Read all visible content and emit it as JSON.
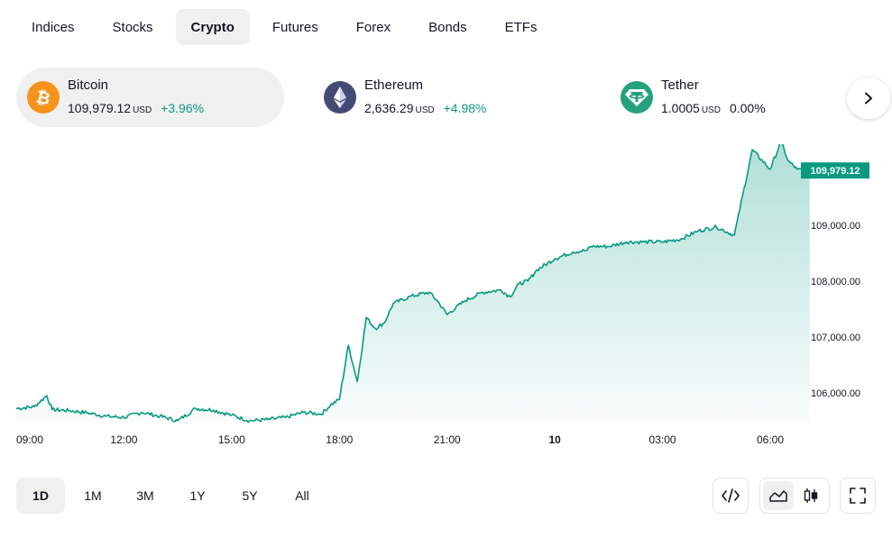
{
  "tabs": [
    {
      "label": "Indices"
    },
    {
      "label": "Stocks"
    },
    {
      "label": "Crypto",
      "active": true
    },
    {
      "label": "Futures"
    },
    {
      "label": "Forex"
    },
    {
      "label": "Bonds"
    },
    {
      "label": "ETFs"
    }
  ],
  "cards": [
    {
      "name": "Bitcoin",
      "price": "109,979.12",
      "unit": "USD",
      "change": "+3.96%",
      "icon": "bitcoin-icon",
      "color": "#f7931a"
    },
    {
      "name": "Ethereum",
      "price": "2,636.29",
      "unit": "USD",
      "change": "+4.98%",
      "icon": "ethereum-icon",
      "color": "#454a75"
    },
    {
      "name": "Tether",
      "price": "1.0005",
      "unit": "USD",
      "change": "0.00%",
      "icon": "tether-icon",
      "color": "#26a17b"
    }
  ],
  "colors": {
    "line": "#089981",
    "positive": "#089981",
    "active_bg": "#f0f0f0"
  },
  "chart_data": {
    "type": "area",
    "x_ticks": [
      "09:00",
      "12:00",
      "15:00",
      "18:00",
      "21:00",
      "10",
      "03:00",
      "06:00"
    ],
    "y_ticks": [
      "109,000.00",
      "108,000.00",
      "107,000.00",
      "106,000.00"
    ],
    "y_values": [
      109000,
      108000,
      107000,
      106000
    ],
    "ylim": [
      105450,
      110450
    ],
    "last_price_label": "109,979.12",
    "series": [
      {
        "x_hours": [
          0,
          0.5,
          0.85,
          1,
          1.5,
          2,
          2.5,
          3,
          3.5,
          4,
          4.5,
          5,
          5.5,
          6,
          6.5,
          7,
          7.5,
          8,
          8.5,
          8.75,
          9,
          9.25,
          9.5,
          9.75,
          10,
          10.25,
          10.5,
          11,
          11.5,
          11.75,
          12,
          12.5,
          13,
          13.5,
          13.75,
          14,
          14.25,
          14.5,
          15,
          15.5,
          15.9,
          16,
          16.5,
          17,
          17.5,
          18,
          18.5,
          19,
          19.5,
          20,
          20.5,
          21,
          21.3,
          21.5,
          21.75,
          21.9,
          22,
          22.1
        ],
        "values": [
          105720,
          105750,
          105950,
          105700,
          105680,
          105640,
          105580,
          105560,
          105650,
          105580,
          105500,
          105720,
          105690,
          105600,
          105500,
          105520,
          105560,
          105650,
          105620,
          105780,
          105880,
          106850,
          106200,
          107350,
          107150,
          107250,
          107600,
          107730,
          107800,
          107630,
          107400,
          107650,
          107800,
          107840,
          107720,
          107950,
          108000,
          108200,
          108400,
          108520,
          108550,
          108620,
          108620,
          108700,
          108700,
          108700,
          108750,
          108900,
          108970,
          108820,
          110350,
          110000,
          110500,
          110150,
          110000,
          109980,
          109980,
          109979.12
        ]
      }
    ]
  },
  "ranges": [
    {
      "label": "1D",
      "active": true
    },
    {
      "label": "1M"
    },
    {
      "label": "3M"
    },
    {
      "label": "1Y"
    },
    {
      "label": "5Y"
    },
    {
      "label": "All"
    }
  ],
  "tools": {
    "embed_icon": "code-icon",
    "area_icon": "area-chart-icon",
    "candle_icon": "candlestick-icon",
    "fullscreen_icon": "fullscreen-icon"
  }
}
